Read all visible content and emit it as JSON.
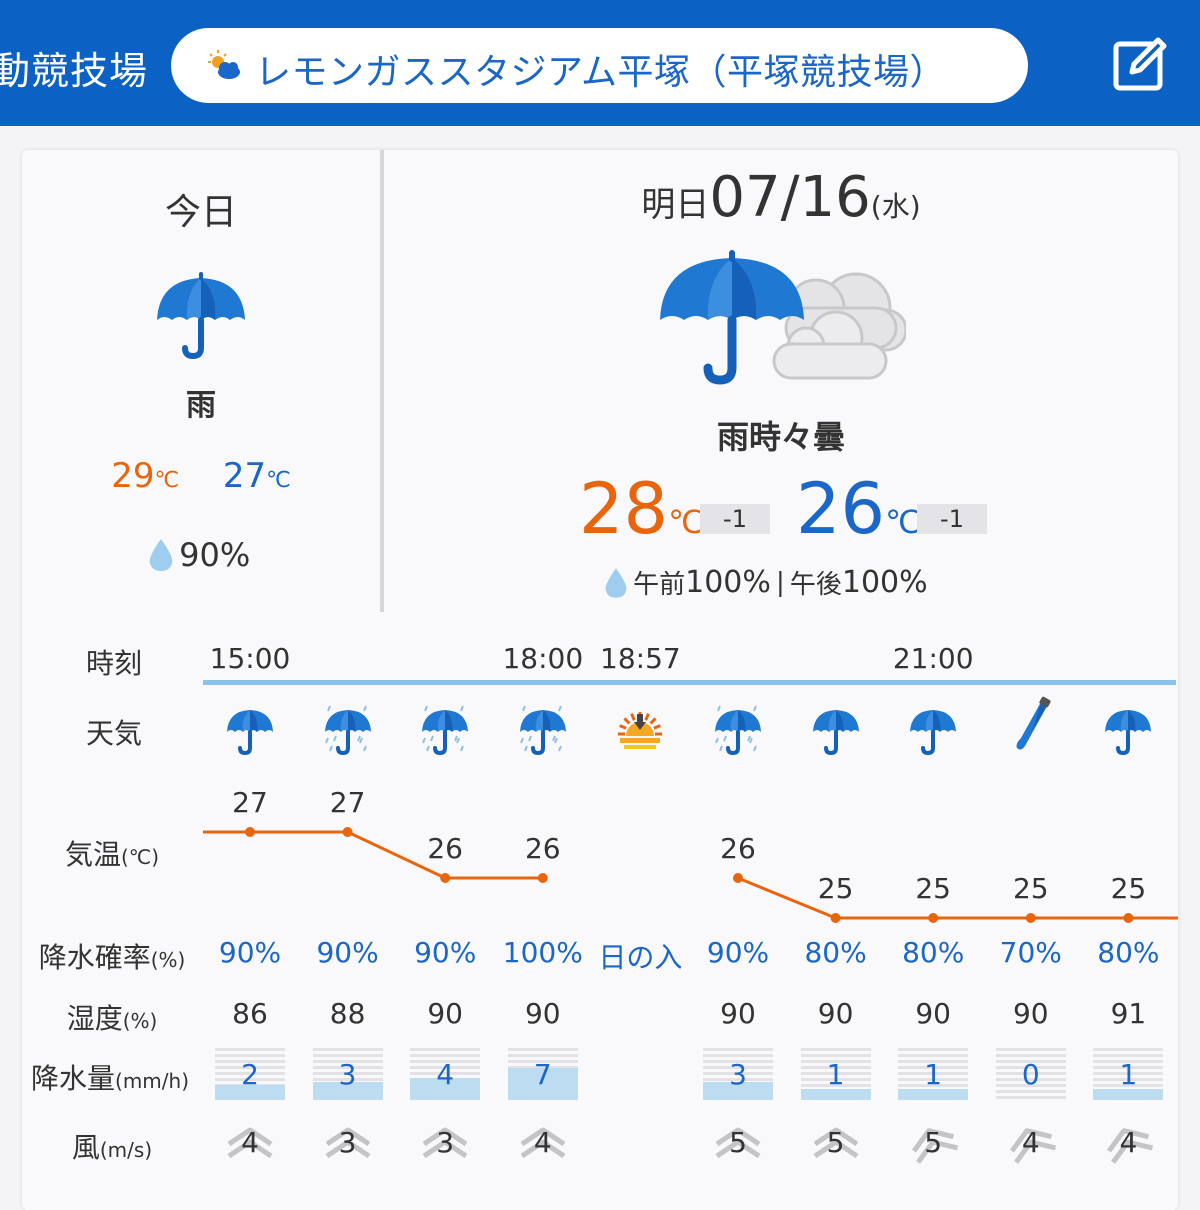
{
  "header": {
    "venue_left": "動競技場",
    "search_label": "レモンガススタジアム平塚（平塚競技場）",
    "search_icon": "partly-cloudy-icon",
    "edit_icon": "edit-icon"
  },
  "today": {
    "title": "今日",
    "weather": "雨",
    "icon": "umbrella-icon",
    "temp_high": "29",
    "temp_low": "27",
    "temp_unit": "℃",
    "precip_prob": "90%"
  },
  "tomorrow": {
    "title_prefix": "明日",
    "date": "07/16",
    "weekday": "(水)",
    "weather": "雨時々曇",
    "icon": "umbrella-cloud-icon",
    "temp_high": "28",
    "temp_high_diff": "-1",
    "temp_low": "26",
    "temp_low_diff": "-1",
    "temp_unit": "℃",
    "precip_am_label": "午前",
    "precip_am": "100%",
    "separator": "|",
    "precip_pm_label": "午後",
    "precip_pm": "100%"
  },
  "hourly": {
    "labels": {
      "time": "時刻",
      "weather": "天気",
      "temp": "気温",
      "temp_unit": "(℃)",
      "pop": "降水確率",
      "pop_unit": "(%)",
      "humidity": "湿度",
      "humidity_unit": "(%)",
      "precip": "降水量",
      "precip_unit": "(mm/h)",
      "wind": "風",
      "wind_unit": "(m/s)"
    },
    "columns": [
      {
        "time": "15:00",
        "icon": "umbrella-icon",
        "temp": "27",
        "pop": "90%",
        "humidity": "86",
        "precip": "2",
        "wind": "4"
      },
      {
        "time": "",
        "icon": "heavy-rain-icon",
        "temp": "27",
        "pop": "90%",
        "humidity": "88",
        "precip": "3",
        "wind": "3"
      },
      {
        "time": "",
        "icon": "heavy-rain-icon",
        "temp": "26",
        "pop": "90%",
        "humidity": "90",
        "precip": "4",
        "wind": "3"
      },
      {
        "time": "18:00",
        "icon": "heavy-rain-icon",
        "temp": "26",
        "pop": "100%",
        "humidity": "90",
        "precip": "7",
        "wind": "4"
      },
      {
        "time": "18:57",
        "icon": "sunset-icon",
        "temp": "",
        "pop": "日の入",
        "humidity": "",
        "precip": "",
        "wind": ""
      },
      {
        "time": "",
        "icon": "heavy-rain-icon",
        "temp": "26",
        "pop": "90%",
        "humidity": "90",
        "precip": "3",
        "wind": "5"
      },
      {
        "time": "",
        "icon": "umbrella-icon",
        "temp": "25",
        "pop": "80%",
        "humidity": "90",
        "precip": "1",
        "wind": "5"
      },
      {
        "time": "21:00",
        "icon": "umbrella-icon",
        "temp": "25",
        "pop": "80%",
        "humidity": "90",
        "precip": "1",
        "wind": "5"
      },
      {
        "time": "",
        "icon": "closed-umbrella-icon",
        "temp": "25",
        "pop": "70%",
        "humidity": "90",
        "precip": "0",
        "wind": "4"
      },
      {
        "time": "",
        "icon": "umbrella-icon",
        "temp": "25",
        "pop": "80%",
        "humidity": "91",
        "precip": "1",
        "wind": "4"
      }
    ]
  },
  "colors": {
    "header_bg": "#0b62c4",
    "high_temp": "#e8650e",
    "low_temp": "#1a66c9",
    "timeline": "#8cc1e8",
    "precip_fill": "#bcdcf2"
  }
}
